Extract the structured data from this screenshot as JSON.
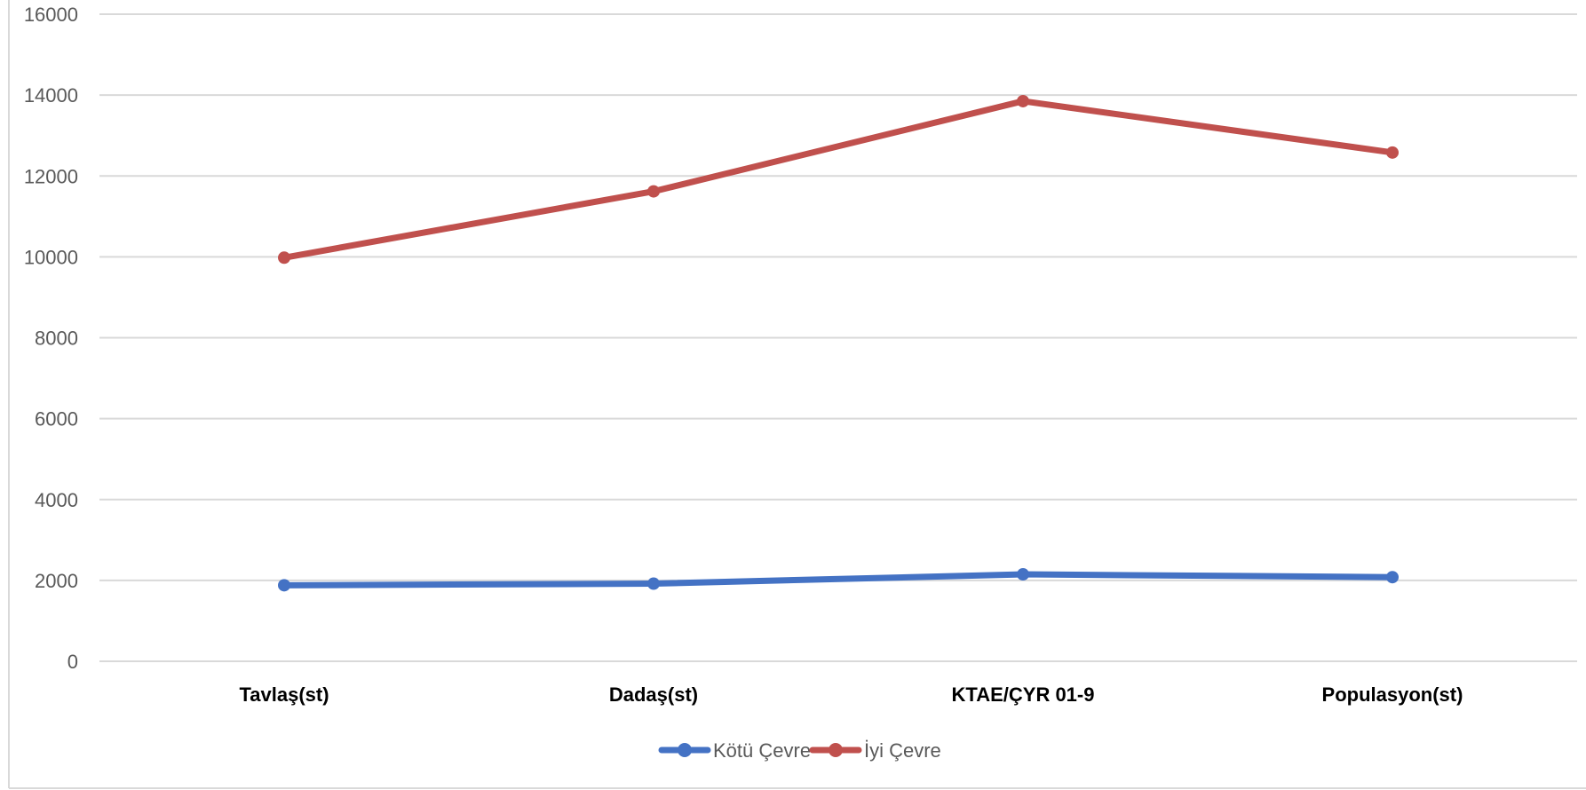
{
  "chart_data": {
    "type": "line",
    "title": "",
    "xlabel": "",
    "ylabel": "",
    "categories": [
      "Tavlaş(st)",
      "Dadaş(st)",
      "KTAE/ÇYR 01-9",
      "Populasyon(st)"
    ],
    "ylim": [
      0,
      16000
    ],
    "yticks": [
      0,
      2000,
      4000,
      6000,
      8000,
      10000,
      12000,
      14000,
      16000
    ],
    "grid": true,
    "legend_position": "bottom",
    "series": [
      {
        "name": "Kötü Çevre",
        "values": [
          1880,
          1920,
          2150,
          2080
        ],
        "color": "#4472c4"
      },
      {
        "name": "İyi Çevre",
        "values": [
          9980,
          11620,
          13850,
          12580
        ],
        "color": "#c0504d"
      }
    ]
  }
}
